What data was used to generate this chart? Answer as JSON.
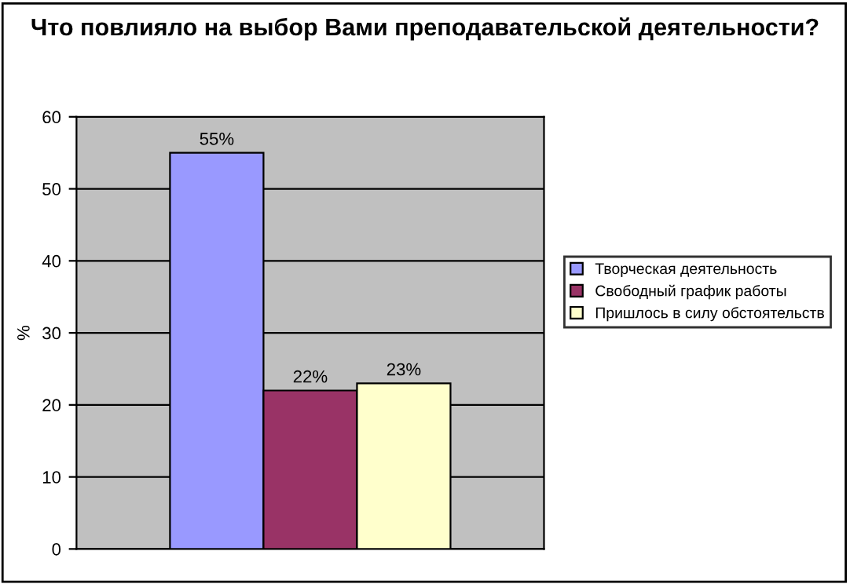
{
  "chart_data": {
    "type": "bar",
    "title": "Что повлияло на выбор Вами преподавательской деятельности?",
    "ylabel": "%",
    "categories": [
      null
    ],
    "series": [
      {
        "name": "Творческая деятельность",
        "color": "#9999ff",
        "values": [
          55
        ],
        "value_labels": [
          "55%"
        ]
      },
      {
        "name": "Свободный график работы",
        "color": "#993366",
        "values": [
          22
        ],
        "value_labels": [
          "22%"
        ]
      },
      {
        "name": "Пришлось в силу обстоятельств",
        "color": "#ffffcc",
        "values": [
          23
        ],
        "value_labels": [
          "23%"
        ]
      }
    ],
    "ylim": [
      0,
      60
    ],
    "yticks": [
      0,
      10,
      20,
      30,
      40,
      50,
      60
    ],
    "grid": "y",
    "legend": "right"
  }
}
